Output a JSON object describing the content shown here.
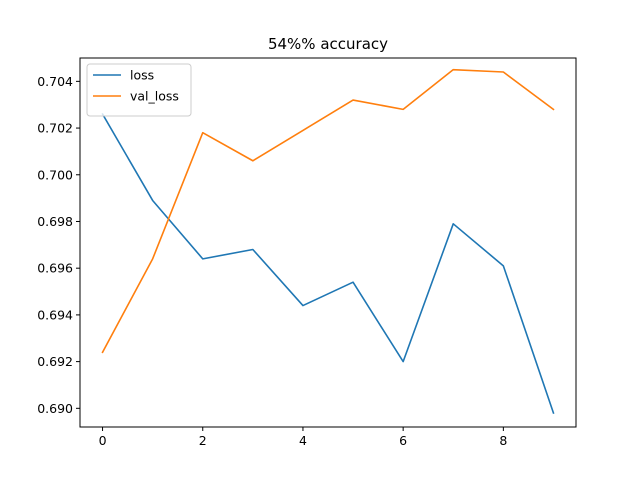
{
  "chart_data": {
    "type": "line",
    "title": "54%% accuracy",
    "xlabel": "",
    "ylabel": "",
    "x": [
      0,
      1,
      2,
      3,
      4,
      5,
      6,
      7,
      8,
      9
    ],
    "xlim": [
      -0.45,
      9.45
    ],
    "ylim": [
      0.6892,
      0.705
    ],
    "xticks": [
      0,
      2,
      4,
      6,
      8
    ],
    "yticks": [
      0.69,
      0.692,
      0.694,
      0.696,
      0.698,
      0.7,
      0.702,
      0.704
    ],
    "xtick_labels": [
      "0",
      "2",
      "4",
      "6",
      "8"
    ],
    "ytick_labels": [
      "0.690",
      "0.692",
      "0.694",
      "0.696",
      "0.698",
      "0.700",
      "0.702",
      "0.704"
    ],
    "grid": false,
    "legend_position": "top-left",
    "series": [
      {
        "name": "loss",
        "color": "#1f77b4",
        "values": [
          0.7026,
          0.6989,
          0.6964,
          0.6968,
          0.6944,
          0.6954,
          0.692,
          0.6979,
          0.6961,
          0.6898
        ]
      },
      {
        "name": "val_loss",
        "color": "#ff7f0e",
        "values": [
          0.6924,
          0.6964,
          0.7018,
          0.7006,
          0.7019,
          0.7032,
          0.7028,
          0.7045,
          0.7044,
          0.7028
        ]
      }
    ]
  }
}
